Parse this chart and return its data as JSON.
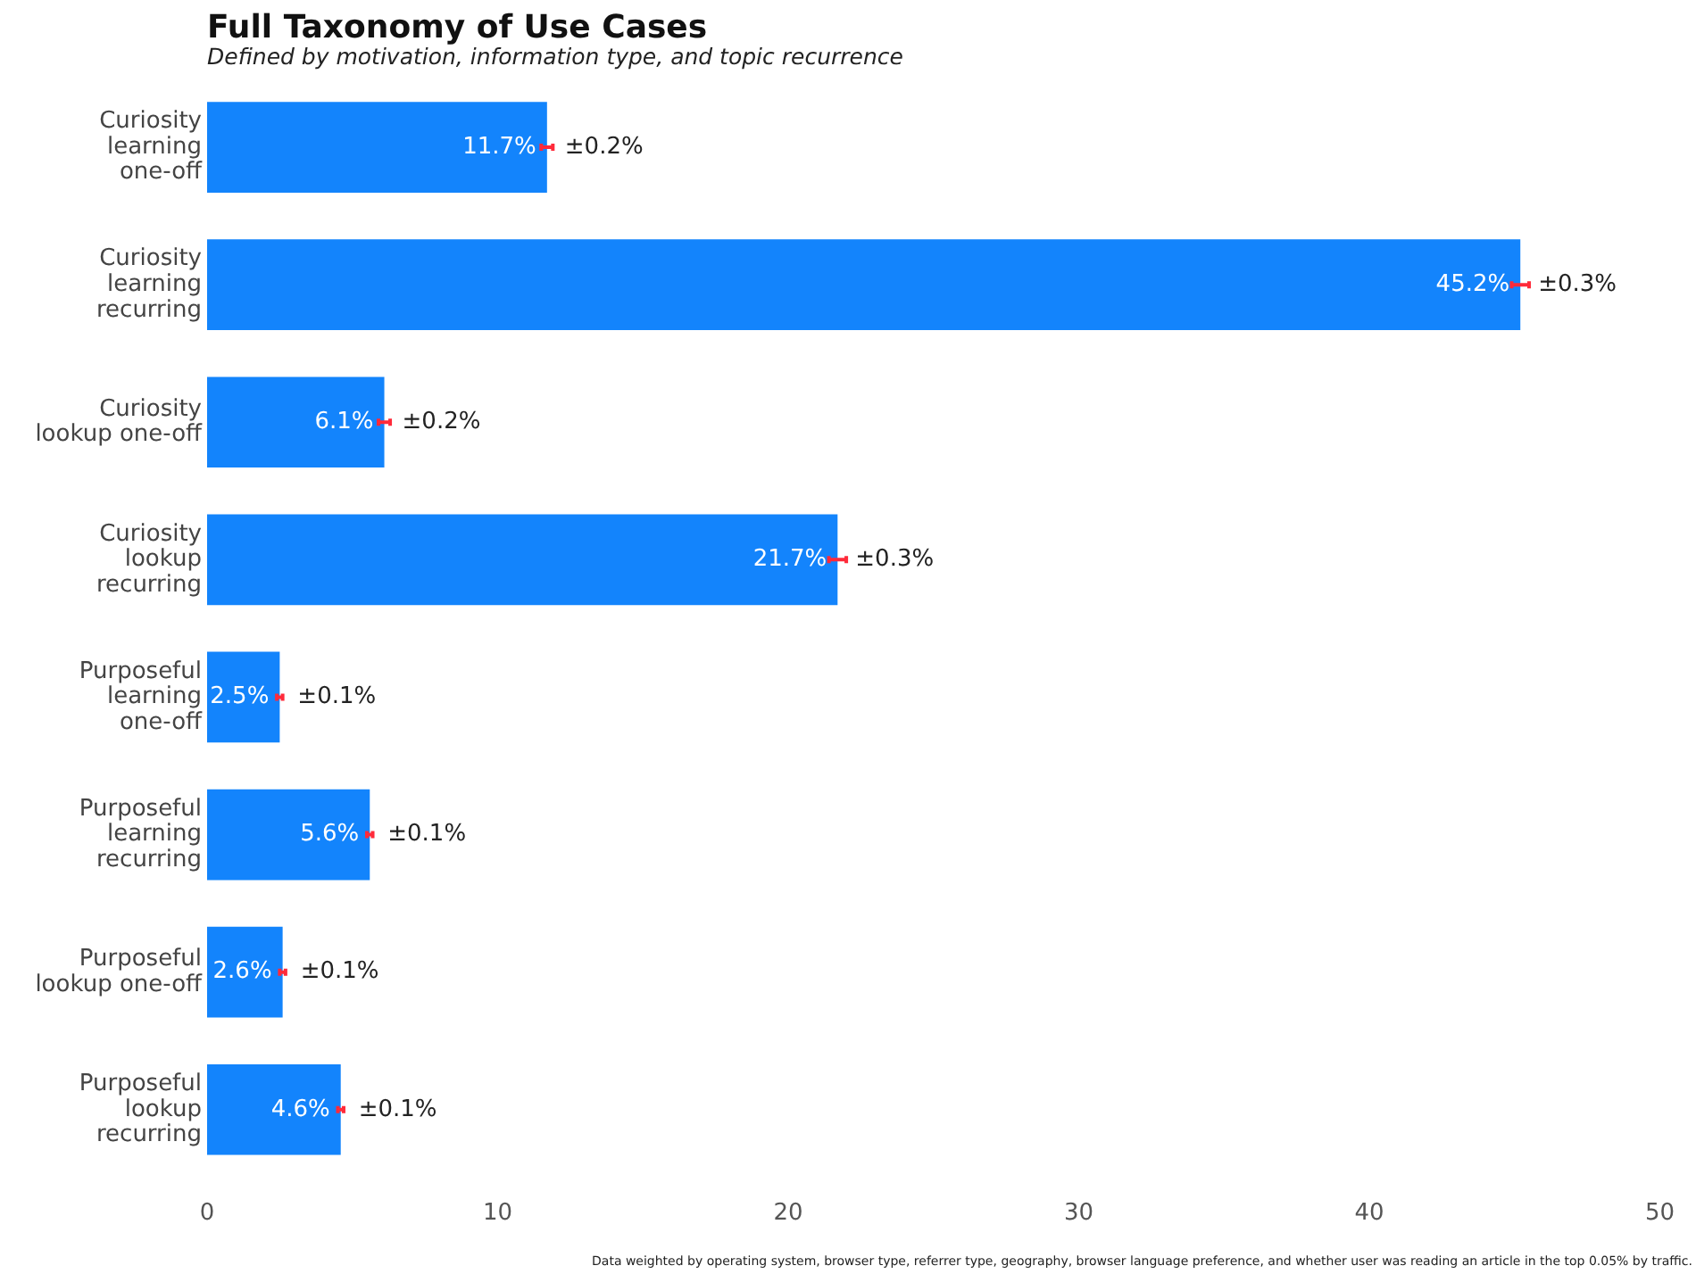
{
  "chart_data": {
    "type": "bar",
    "orientation": "horizontal",
    "title": "Full Taxonomy of Use Cases",
    "subtitle": "Defined by motivation, information type, and topic recurrence",
    "categories": [
      "Curiosity learning one-off",
      "Curiosity learning recurring",
      "Curiosity lookup one-off",
      "Curiosity lookup recurring",
      "Purposeful learning one-off",
      "Purposeful learning recurring",
      "Purposeful lookup one-off",
      "Purposeful lookup recurring"
    ],
    "values": [
      11.7,
      45.2,
      6.1,
      21.7,
      2.5,
      5.6,
      2.6,
      4.6
    ],
    "value_labels": [
      "11.7%",
      "45.2%",
      "6.1%",
      "21.7%",
      "2.5%",
      "5.6%",
      "2.6%",
      "4.6%"
    ],
    "errors": [
      0.2,
      0.3,
      0.2,
      0.3,
      0.1,
      0.1,
      0.1,
      0.1
    ],
    "color": "#1384fc",
    "xlim": [
      0,
      50
    ],
    "xticks": [
      0,
      10,
      20,
      30,
      40,
      50
    ],
    "grid": false,
    "legend": false,
    "annotations": [
      {
        "text": "±0.2%",
        "x": 11.7,
        "y": "Curiosity learning one-off"
      },
      {
        "text": "±0.3%",
        "x": 45.2,
        "y": "Curiosity learning recurring"
      },
      {
        "text": "±0.2%",
        "x": 6.1,
        "y": "Curiosity lookup one-off"
      },
      {
        "text": "±0.3%",
        "x": 21.7,
        "y": "Curiosity lookup recurring"
      },
      {
        "text": "±0.1%",
        "x": 2.5,
        "y": "Purposeful learning one-off"
      },
      {
        "text": "±0.1%",
        "x": 5.6,
        "y": "Purposeful learning recurring"
      },
      {
        "text": "±0.1%",
        "x": 2.6,
        "y": "Purposeful lookup one-off"
      },
      {
        "text": "±0.1%",
        "x": 4.6,
        "y": "Purposeful lookup recurring"
      },
      "Data weighted by operating system, browser type, referrer type, geography, browser language preference, and whether user was reading an article in the top 0.05% by traffic."
    ]
  }
}
